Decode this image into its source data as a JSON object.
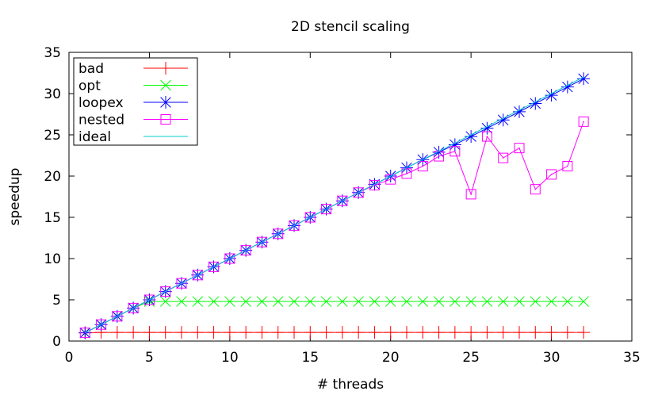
{
  "chart_data": {
    "type": "line",
    "title": "2D stencil scaling",
    "xlabel": "# threads",
    "ylabel": "speedup",
    "xlim": [
      0,
      35
    ],
    "ylim": [
      0,
      35
    ],
    "xticks": [
      0,
      5,
      10,
      15,
      20,
      25,
      30,
      35
    ],
    "yticks": [
      0,
      5,
      10,
      15,
      20,
      25,
      30,
      35
    ],
    "legend_position": "top-left",
    "x": [
      1,
      2,
      3,
      4,
      5,
      6,
      7,
      8,
      9,
      10,
      11,
      12,
      13,
      14,
      15,
      16,
      17,
      18,
      19,
      20,
      21,
      22,
      23,
      24,
      25,
      26,
      27,
      28,
      29,
      30,
      31,
      32
    ],
    "series": [
      {
        "name": "bad",
        "color": "#ff0000",
        "marker": "plus",
        "values": [
          1,
          1.05,
          1.05,
          1.05,
          1.05,
          1.05,
          1.05,
          1.05,
          1.05,
          1.05,
          1.05,
          1.05,
          1.05,
          1.05,
          1.05,
          1.05,
          1.05,
          1.05,
          1.05,
          1.05,
          1.05,
          1.05,
          1.05,
          1.05,
          1.05,
          1.05,
          1.05,
          1.05,
          1.05,
          1.05,
          1.05,
          1.05
        ]
      },
      {
        "name": "opt",
        "color": "#00ff00",
        "marker": "cross",
        "values": [
          1,
          2,
          3,
          4,
          4.8,
          4.8,
          4.8,
          4.8,
          4.8,
          4.8,
          4.8,
          4.8,
          4.8,
          4.8,
          4.8,
          4.8,
          4.8,
          4.8,
          4.8,
          4.8,
          4.8,
          4.8,
          4.8,
          4.8,
          4.8,
          4.8,
          4.8,
          4.8,
          4.8,
          4.8,
          4.8,
          4.8
        ]
      },
      {
        "name": "loopex",
        "color": "#0000ff",
        "marker": "star",
        "values": [
          1,
          2,
          3,
          4,
          5,
          6,
          7,
          8,
          9,
          10,
          11,
          12,
          13,
          14,
          15,
          16,
          17,
          18,
          19,
          20,
          21,
          22,
          22.9,
          23.8,
          24.8,
          25.8,
          26.8,
          27.8,
          28.8,
          29.8,
          30.8,
          31.8
        ]
      },
      {
        "name": "nested",
        "color": "#ff00ff",
        "marker": "square",
        "values": [
          1,
          2,
          3,
          4,
          5,
          6,
          7,
          8,
          9,
          10,
          11,
          12,
          13,
          14,
          15,
          16,
          17,
          18,
          18.9,
          19.6,
          20.3,
          21.2,
          22.4,
          23.0,
          17.8,
          24.8,
          22.2,
          23.4,
          18.4,
          20.2,
          21.2,
          26.6
        ]
      },
      {
        "name": "ideal",
        "color": "#00cccc",
        "marker": "none",
        "values": [
          1,
          2,
          3,
          4,
          5,
          6,
          7,
          8,
          9,
          10,
          11,
          12,
          13,
          14,
          15,
          16,
          17,
          18,
          19,
          20,
          21,
          22,
          23,
          24,
          25,
          26,
          27,
          28,
          29,
          30,
          31,
          32
        ]
      }
    ]
  }
}
